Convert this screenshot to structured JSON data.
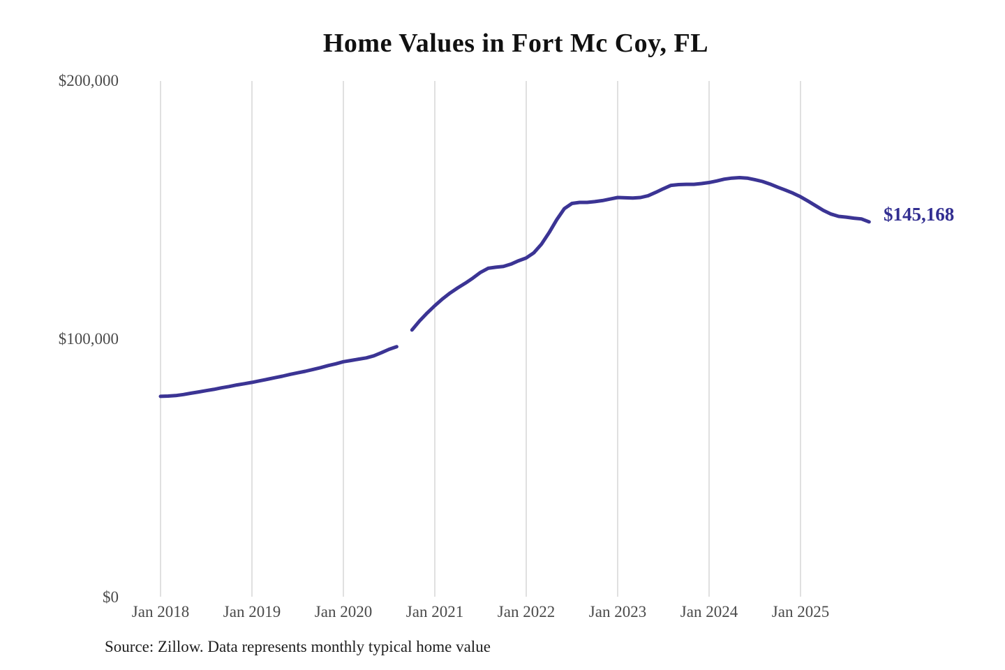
{
  "page": {
    "title": "Home Values in Fort Mc Coy, FL",
    "source_note": "Source: Zillow. Data represents monthly typical home value"
  },
  "chart_data": {
    "type": "line",
    "title": "Home Values in Fort Mc Coy, FL",
    "subtitle": "",
    "unit": "USD",
    "x_start_month": "2018-01",
    "x_end_month": "2025-10",
    "x_tick_labels": [
      "Jan 2018",
      "Jan 2019",
      "Jan 2020",
      "Jan 2021",
      "Jan 2022",
      "Jan 2023",
      "Jan 2024",
      "Jan 2025"
    ],
    "y_ticks": [
      {
        "label": "$0",
        "value": 0
      },
      {
        "label": "$100,000",
        "value": 100000
      },
      {
        "label": "$200,000",
        "value": 200000
      }
    ],
    "ylim": [
      0,
      200000
    ],
    "grid": "vertical-only",
    "line_color": "#3b3494",
    "label_color": "#322e91",
    "grid_color": "#cccccc",
    "end_label": "$145,168",
    "final_value": 145168,
    "data_gap_month": "2020-09",
    "series": [
      {
        "name": "Monthly typical home value",
        "monthly_values": [
          77600,
          77700,
          77900,
          78300,
          78800,
          79300,
          79800,
          80300,
          80900,
          81400,
          82000,
          82500,
          83000,
          83600,
          84200,
          84800,
          85400,
          86100,
          86700,
          87300,
          88000,
          88700,
          89500,
          90200,
          91000,
          91500,
          92000,
          92500,
          93300,
          94500,
          95800,
          96800,
          null,
          103300,
          106800,
          109900,
          112700,
          115300,
          117600,
          119600,
          121400,
          123400,
          125600,
          127200,
          127600,
          127900,
          128800,
          130100,
          131200,
          133200,
          136500,
          141000,
          146000,
          150300,
          152300,
          152700,
          152700,
          153000,
          153400,
          154000,
          154600,
          154500,
          154400,
          154600,
          155300,
          156600,
          158000,
          159300,
          159600,
          159700,
          159700,
          160000,
          160400,
          161000,
          161700,
          162100,
          162300,
          162100,
          161500,
          160800,
          159800,
          158600,
          157500,
          156300,
          154900,
          153200,
          151400,
          149600,
          148200,
          147300,
          147000,
          146600,
          146300,
          145168
        ]
      }
    ],
    "source": "Source: Zillow. Data represents monthly typical home value"
  }
}
